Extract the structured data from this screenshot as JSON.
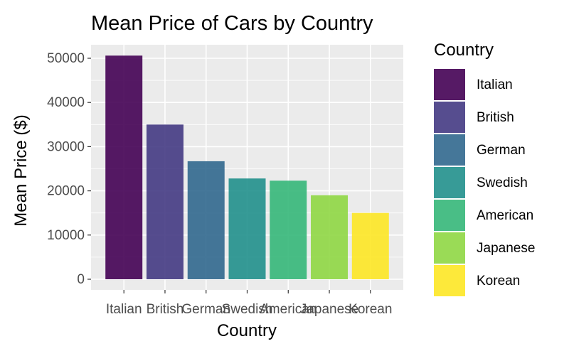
{
  "chart_data": {
    "type": "bar",
    "title": "Mean Price of Cars by Country",
    "xlabel": "Country",
    "ylabel": "Mean Price ($)",
    "categories": [
      "Italian",
      "British",
      "German",
      "Swedish",
      "American",
      "Japanese",
      "Korean"
    ],
    "values": [
      50600,
      35000,
      26700,
      22800,
      22300,
      19000,
      15000
    ],
    "ylim": [
      0,
      53000
    ],
    "yticks": [
      0,
      10000,
      20000,
      30000,
      40000,
      50000
    ],
    "ytick_labels": [
      "0",
      "10000",
      "20000",
      "30000",
      "40000",
      "50000"
    ],
    "colors": [
      "#440154",
      "#443A83",
      "#31688E",
      "#21908C",
      "#35B779",
      "#8FD744",
      "#FDE725"
    ],
    "legend": {
      "title": "Country",
      "placement": "right",
      "entries": [
        "Italian",
        "British",
        "German",
        "Swedish",
        "American",
        "Japanese",
        "Korean"
      ]
    },
    "grid": true,
    "panel_background": "#EBEBEB"
  }
}
